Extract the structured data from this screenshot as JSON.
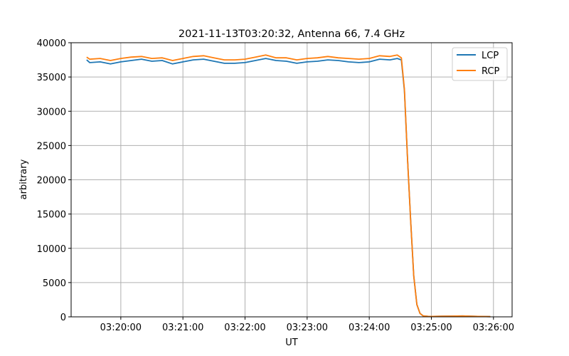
{
  "chart_data": {
    "type": "line",
    "title": "2021-11-13T03:20:32, Antenna 66, 7.4 GHz",
    "xlabel": "UT",
    "ylabel": "arbitrary",
    "xlim": [
      "03:19:12",
      "03:26:18"
    ],
    "ylim": [
      0,
      40000
    ],
    "xticks": [
      "03:20:00",
      "03:21:00",
      "03:22:00",
      "03:23:00",
      "03:24:00",
      "03:25:00",
      "03:26:00"
    ],
    "yticks": [
      0,
      5000,
      10000,
      15000,
      20000,
      25000,
      30000,
      35000,
      40000
    ],
    "grid": true,
    "legend": "top-right",
    "x": [
      "03:19:27",
      "03:19:30",
      "03:19:40",
      "03:19:50",
      "03:20:00",
      "03:20:10",
      "03:20:20",
      "03:20:30",
      "03:20:40",
      "03:20:50",
      "03:21:00",
      "03:21:10",
      "03:21:20",
      "03:21:30",
      "03:21:40",
      "03:21:50",
      "03:22:00",
      "03:22:10",
      "03:22:20",
      "03:22:30",
      "03:22:40",
      "03:22:50",
      "03:23:00",
      "03:23:10",
      "03:23:20",
      "03:23:30",
      "03:23:40",
      "03:23:50",
      "03:24:00",
      "03:24:10",
      "03:24:20",
      "03:24:27",
      "03:24:31",
      "03:24:34",
      "03:24:37",
      "03:24:40",
      "03:24:43",
      "03:24:46",
      "03:24:49",
      "03:24:52",
      "03:24:58",
      "03:25:10",
      "03:25:30",
      "03:25:45",
      "03:25:57"
    ],
    "series": [
      {
        "name": "LCP",
        "color": "#1f77b4",
        "values": [
          37500,
          37100,
          37200,
          36900,
          37200,
          37400,
          37600,
          37300,
          37400,
          36900,
          37200,
          37500,
          37600,
          37300,
          37000,
          37000,
          37100,
          37400,
          37700,
          37400,
          37300,
          37000,
          37200,
          37300,
          37500,
          37400,
          37200,
          37100,
          37200,
          37600,
          37500,
          37700,
          37500,
          33000,
          23000,
          14000,
          6000,
          1800,
          500,
          150,
          50,
          80,
          120,
          60,
          30
        ]
      },
      {
        "name": "RCP",
        "color": "#ff7f0e",
        "values": [
          37900,
          37600,
          37700,
          37400,
          37700,
          37900,
          38000,
          37700,
          37800,
          37400,
          37700,
          38000,
          38100,
          37800,
          37500,
          37500,
          37600,
          37900,
          38200,
          37800,
          37800,
          37500,
          37700,
          37800,
          38000,
          37800,
          37700,
          37600,
          37700,
          38100,
          38000,
          38200,
          37800,
          33200,
          23000,
          14000,
          6000,
          1800,
          500,
          150,
          50,
          80,
          120,
          60,
          30
        ]
      }
    ]
  }
}
